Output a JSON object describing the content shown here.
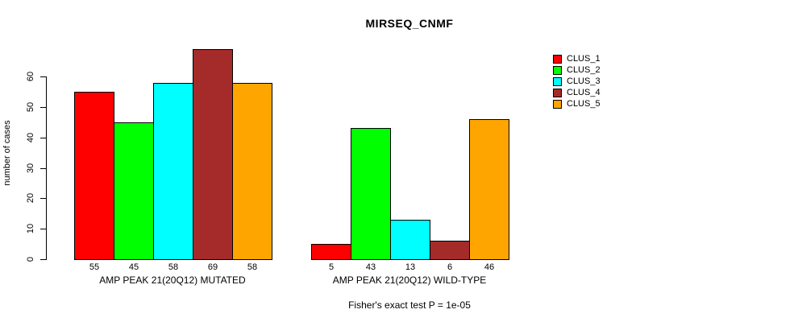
{
  "title": "MIRSEQ_CNMF",
  "y_axis": {
    "label": "number of cases",
    "ticks": [
      0,
      10,
      20,
      30,
      40,
      50,
      60
    ]
  },
  "footer": "Fisher's exact test P = 1e-05",
  "legend": {
    "position": "top-right",
    "items": [
      {
        "label": "CLUS_1",
        "color": "#ff0000"
      },
      {
        "label": "CLUS_2",
        "color": "#00ff00"
      },
      {
        "label": "CLUS_3",
        "color": "#00ffff"
      },
      {
        "label": "CLUS_4",
        "color": "#a52a2a"
      },
      {
        "label": "CLUS_5",
        "color": "#ffa500"
      }
    ]
  },
  "chart_data": {
    "type": "bar",
    "title": "MIRSEQ_CNMF",
    "ylabel": "number of cases",
    "xlabel": "",
    "ylim": [
      0,
      60
    ],
    "yticks": [
      0,
      10,
      20,
      30,
      40,
      50,
      60
    ],
    "grid": false,
    "legend_position": "top-right",
    "categories": [
      "AMP PEAK 21(20Q12) MUTATED",
      "AMP PEAK 21(20Q12) WILD-TYPE"
    ],
    "series": [
      {
        "name": "CLUS_1",
        "color": "#ff0000",
        "values": [
          55,
          5
        ]
      },
      {
        "name": "CLUS_2",
        "color": "#00ff00",
        "values": [
          45,
          43
        ]
      },
      {
        "name": "CLUS_3",
        "color": "#00ffff",
        "values": [
          58,
          13
        ]
      },
      {
        "name": "CLUS_4",
        "color": "#a52a2a",
        "values": [
          69,
          6
        ]
      },
      {
        "name": "CLUS_5",
        "color": "#ffa500",
        "values": [
          58,
          46
        ]
      }
    ],
    "bar_value_labels_shown": true,
    "annotation": "Fisher's exact test P = 1e-05"
  }
}
